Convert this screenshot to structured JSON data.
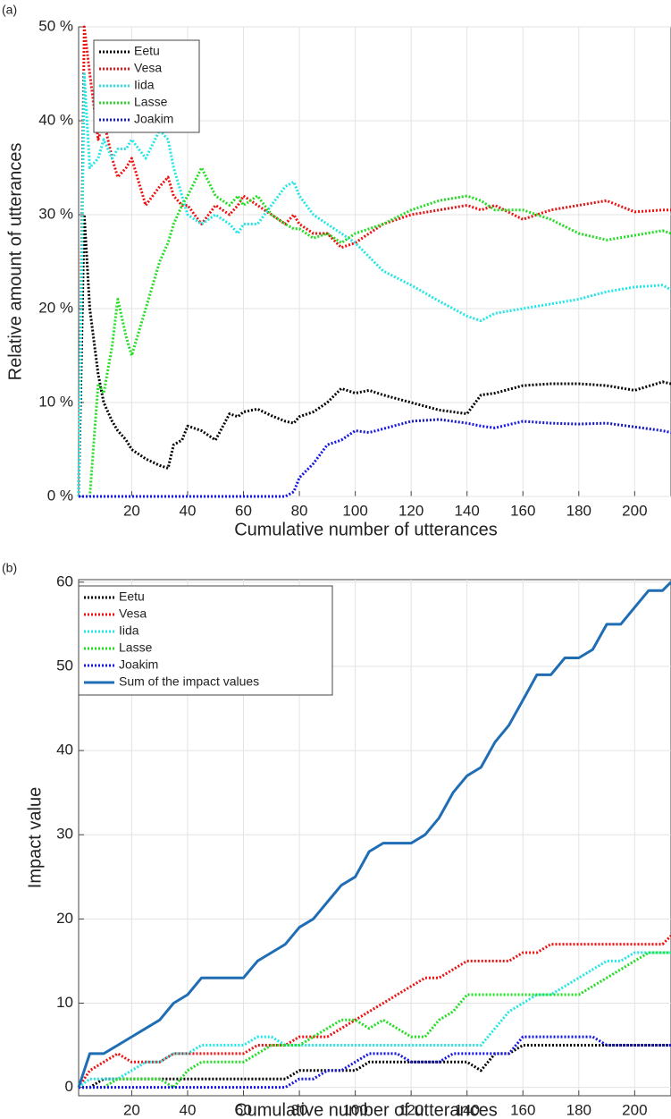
{
  "chart_data": [
    {
      "type": "line",
      "label": "(a)",
      "xlabel": "Cumulative number of utterances",
      "ylabel": "Relative amount of utterances",
      "x": [
        1,
        3,
        5,
        8,
        10,
        13,
        15,
        18,
        20,
        25,
        30,
        33,
        35,
        38,
        40,
        45,
        50,
        55,
        58,
        60,
        65,
        70,
        75,
        78,
        80,
        85,
        90,
        95,
        100,
        105,
        110,
        120,
        130,
        140,
        145,
        150,
        160,
        170,
        180,
        190,
        200,
        210,
        213
      ],
      "series": [
        {
          "name": "Eetu",
          "color": "#000000",
          "style": "dotted",
          "values": [
            0,
            30,
            20,
            13,
            10,
            8,
            7,
            6,
            5,
            4,
            3.3,
            3,
            5.5,
            6,
            7.5,
            7,
            6,
            8.8,
            8.5,
            9,
            9.3,
            8.6,
            8,
            7.8,
            8.5,
            9,
            10,
            11.5,
            11,
            11.3,
            10.8,
            10,
            9.2,
            8.8,
            10.8,
            11,
            11.8,
            12,
            12,
            11.8,
            11.3,
            12.2,
            12
          ]
        },
        {
          "name": "Vesa",
          "color": "#ee1111",
          "style": "dotted",
          "values": [
            0,
            50,
            45,
            38,
            40,
            36,
            34,
            35,
            36,
            31,
            33,
            34,
            32,
            31,
            31,
            29,
            31,
            30,
            31,
            32,
            31,
            30,
            29,
            30,
            29,
            28,
            28,
            26.5,
            27,
            28,
            29,
            30,
            30.5,
            31,
            30.5,
            31,
            29.5,
            30.5,
            31,
            31.5,
            30.3,
            30.5,
            30.5
          ]
        },
        {
          "name": "Iida",
          "color": "#22e6e6",
          "style": "dotted",
          "values": [
            0,
            45,
            35,
            36,
            38,
            36,
            37,
            37,
            38,
            36,
            39,
            38,
            35,
            32,
            30,
            29,
            30,
            29,
            28,
            29,
            29,
            31,
            33,
            33.5,
            32,
            30,
            29,
            28,
            27,
            25.5,
            24,
            22.5,
            20.8,
            19.2,
            18.7,
            19.5,
            20,
            20.5,
            21,
            21.8,
            22.3,
            22.5,
            22
          ]
        },
        {
          "name": "Lasse",
          "color": "#22dd22",
          "style": "dotted",
          "values": [
            0,
            0,
            0,
            12,
            11,
            16,
            21,
            17,
            15,
            20,
            25,
            27,
            29,
            31,
            32,
            35,
            32,
            31,
            32,
            31,
            32,
            30,
            29,
            28.5,
            28.5,
            27.5,
            28,
            27,
            28,
            28.5,
            29,
            30.5,
            31.5,
            32,
            31.5,
            30.5,
            30.5,
            29.5,
            28,
            27.3,
            27.8,
            28.3,
            28
          ]
        },
        {
          "name": "Joakim",
          "color": "#1515e0",
          "style": "dotted",
          "values": [
            0,
            0,
            0,
            0,
            0,
            0,
            0,
            0,
            0,
            0,
            0,
            0,
            0,
            0,
            0,
            0,
            0,
            0,
            0,
            0,
            0,
            0,
            0,
            0.5,
            2,
            3.5,
            5.5,
            6,
            7,
            6.8,
            7.2,
            8,
            8.2,
            7.8,
            7.5,
            7.3,
            8,
            7.8,
            7.7,
            7.8,
            7.4,
            7,
            6.8
          ]
        }
      ],
      "xlim": [
        1,
        213
      ],
      "ylim": [
        0,
        50
      ],
      "xticks": [
        20,
        40,
        60,
        80,
        100,
        120,
        140,
        160,
        180,
        200
      ],
      "yticks": [
        {
          "value": 0,
          "label": "0 %"
        },
        {
          "value": 10,
          "label": "10 %"
        },
        {
          "value": 20,
          "label": "20 %"
        },
        {
          "value": 30,
          "label": "30 %"
        },
        {
          "value": 40,
          "label": "40 %"
        },
        {
          "value": 50,
          "label": "50 %"
        }
      ],
      "grid": true,
      "legend": "upper-left"
    },
    {
      "type": "line",
      "label": "(b)",
      "xlabel": "Cumulative number of utterances",
      "ylabel": "Impact value",
      "x": [
        1,
        5,
        10,
        15,
        20,
        25,
        30,
        35,
        40,
        45,
        50,
        55,
        60,
        65,
        70,
        75,
        80,
        85,
        90,
        95,
        100,
        105,
        110,
        115,
        120,
        125,
        130,
        135,
        140,
        145,
        150,
        155,
        160,
        165,
        170,
        175,
        180,
        185,
        190,
        195,
        200,
        205,
        210,
        213
      ],
      "series": [
        {
          "name": "Eetu",
          "color": "#000000",
          "style": "dotted",
          "values": [
            0,
            0,
            1,
            1,
            1,
            1,
            1,
            1,
            1,
            1,
            1,
            1,
            1,
            1,
            1,
            1,
            2,
            2,
            2,
            2,
            2,
            3,
            3,
            3,
            3,
            3,
            3,
            3,
            3,
            2,
            4,
            4,
            5,
            5,
            5,
            5,
            5,
            5,
            5,
            5,
            5,
            5,
            5,
            5
          ]
        },
        {
          "name": "Vesa",
          "color": "#ee1111",
          "style": "dotted",
          "values": [
            0,
            2,
            3,
            4,
            3,
            3,
            3,
            4,
            4,
            4,
            4,
            4,
            4,
            5,
            5,
            5,
            6,
            6,
            6,
            7,
            8,
            9,
            10,
            11,
            12,
            13,
            13,
            14,
            15,
            15,
            15,
            15,
            16,
            16,
            17,
            17,
            17,
            17,
            17,
            17,
            17,
            17,
            17,
            18
          ]
        },
        {
          "name": "Iida",
          "color": "#22e6e6",
          "style": "dotted",
          "values": [
            0,
            1,
            1,
            1,
            2,
            3,
            3,
            4,
            4,
            5,
            5,
            5,
            5,
            6,
            6,
            5,
            5,
            5,
            5,
            5,
            5,
            5,
            5,
            5,
            5,
            5,
            5,
            5,
            5,
            5,
            7,
            9,
            10,
            11,
            11,
            12,
            13,
            14,
            15,
            15,
            16,
            16,
            16,
            16
          ]
        },
        {
          "name": "Lasse",
          "color": "#22dd22",
          "style": "dotted",
          "values": [
            0,
            0,
            0,
            1,
            1,
            1,
            1,
            0,
            2,
            3,
            3,
            3,
            3,
            4,
            5,
            5,
            5,
            6,
            7,
            8,
            8,
            7,
            8,
            7,
            6,
            6,
            8,
            9,
            11,
            11,
            11,
            11,
            11,
            11,
            11,
            11,
            11,
            12,
            13,
            14,
            15,
            16,
            16,
            16
          ]
        },
        {
          "name": "Joakim",
          "color": "#1515e0",
          "style": "dotted",
          "values": [
            0,
            0,
            0,
            0,
            0,
            0,
            0,
            0,
            0,
            0,
            0,
            0,
            0,
            0,
            0,
            0,
            1,
            1,
            2,
            2,
            3,
            4,
            4,
            4,
            3,
            3,
            3,
            4,
            4,
            4,
            4,
            4,
            6,
            6,
            6,
            6,
            6,
            6,
            5,
            5,
            5,
            5,
            5,
            5
          ]
        },
        {
          "name": "Sum of the impact values",
          "color": "#1f6db4",
          "style": "solid",
          "values": [
            0,
            4,
            4,
            5,
            6,
            7,
            8,
            10,
            11,
            13,
            13,
            13,
            13,
            15,
            16,
            17,
            19,
            20,
            22,
            24,
            25,
            28,
            29,
            29,
            29,
            30,
            32,
            35,
            37,
            38,
            41,
            43,
            46,
            49,
            49,
            51,
            51,
            52,
            55,
            55,
            57,
            59,
            59,
            60
          ]
        }
      ],
      "xlim": [
        1,
        213
      ],
      "ylim": [
        -1,
        60.3
      ],
      "xticks": [
        20,
        40,
        60,
        80,
        100,
        120,
        140,
        160,
        180,
        200
      ],
      "yticks": [
        0,
        10,
        20,
        30,
        40,
        50,
        60
      ],
      "grid": true,
      "legend": "upper-left"
    }
  ]
}
